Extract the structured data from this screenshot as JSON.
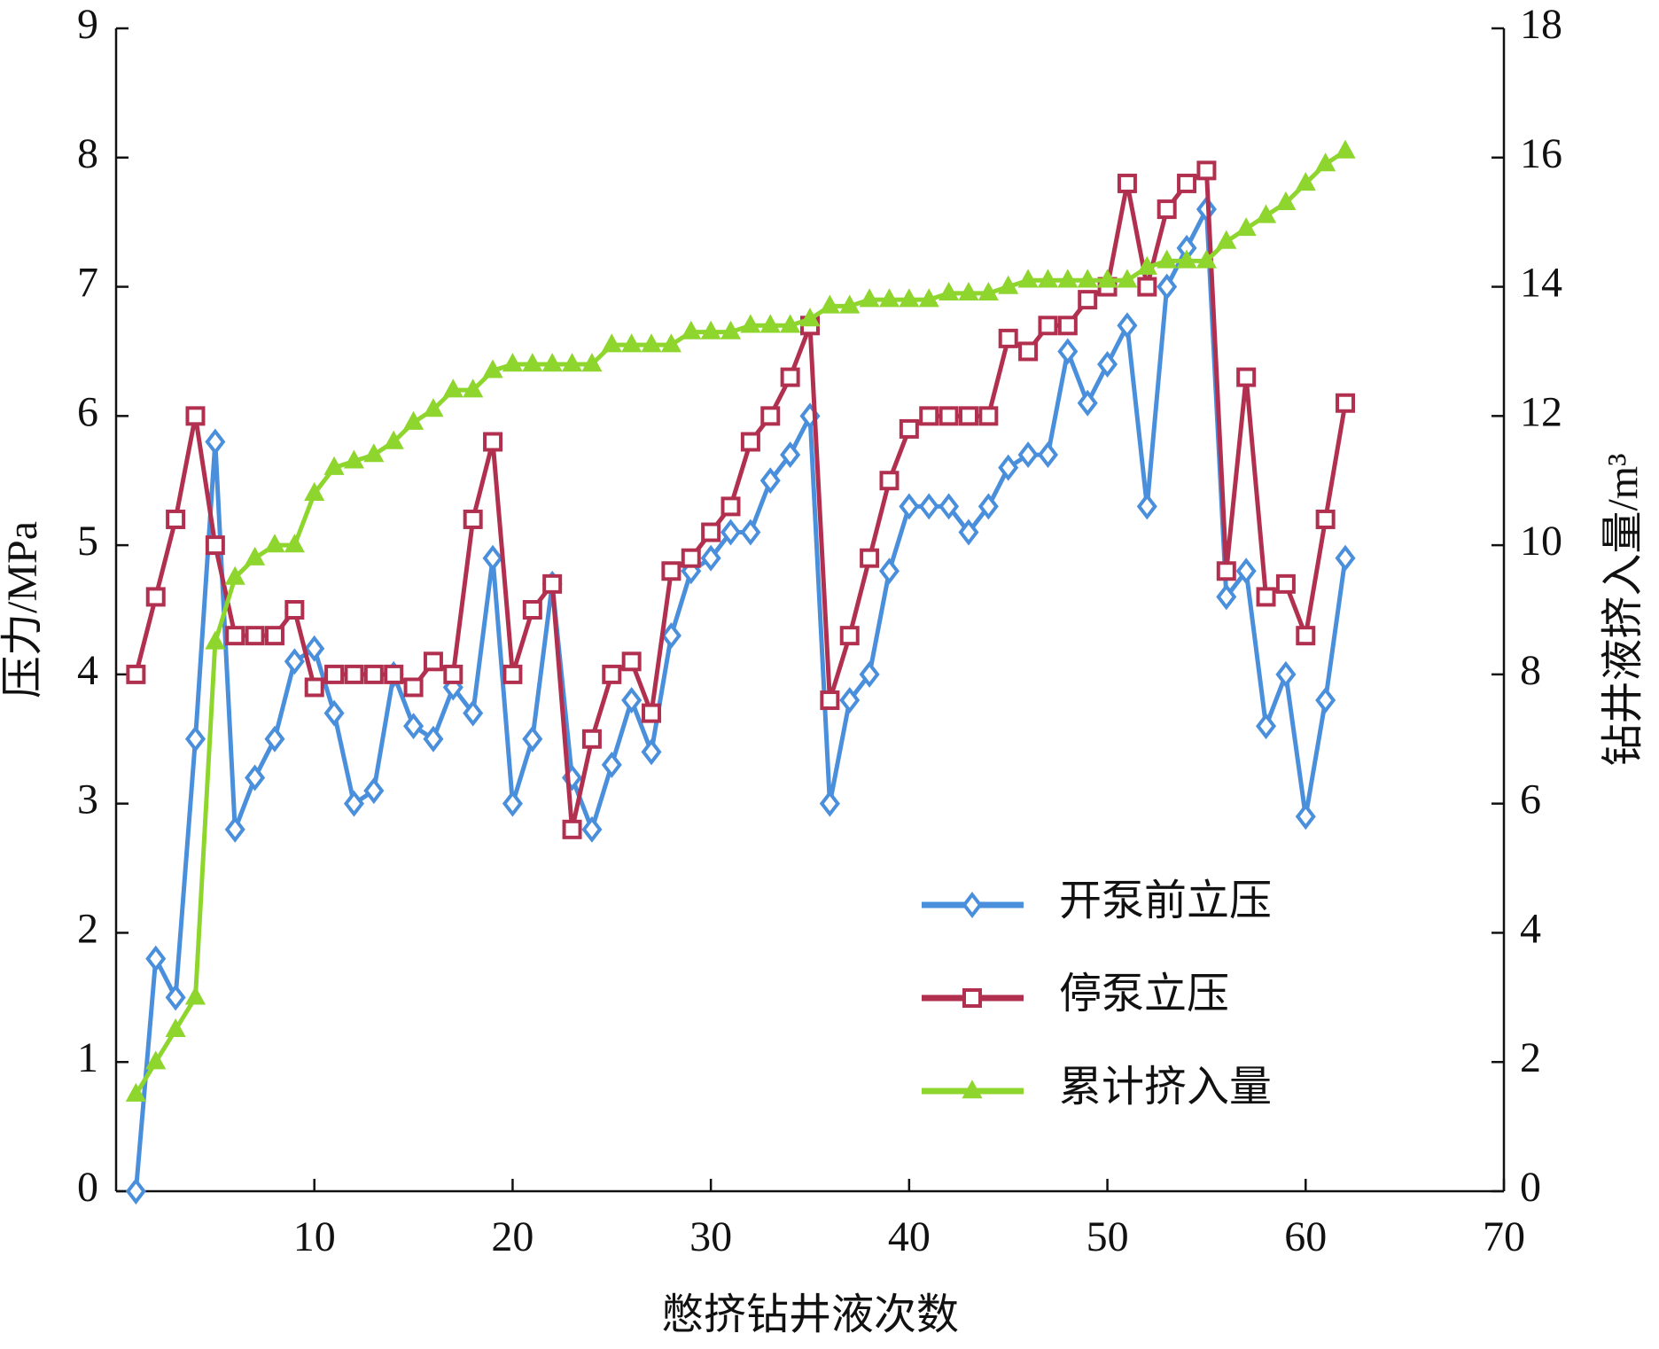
{
  "chart_data": {
    "type": "line",
    "x_label": "憋挤钻井液次数",
    "y_label": "压力/MPa",
    "y2_label": "钻井液挤入量/m³",
    "x": [
      1,
      2,
      3,
      4,
      5,
      6,
      7,
      8,
      9,
      10,
      11,
      12,
      13,
      14,
      15,
      16,
      17,
      18,
      19,
      20,
      21,
      22,
      23,
      24,
      25,
      26,
      27,
      28,
      29,
      30,
      31,
      32,
      33,
      34,
      35,
      36,
      37,
      38,
      39,
      40,
      41,
      42,
      43,
      44,
      45,
      46,
      47,
      48,
      49,
      50,
      51,
      52,
      53,
      54,
      55,
      56,
      57,
      58,
      59,
      60,
      61,
      62
    ],
    "series": [
      {
        "name": "开泵前立压",
        "color": "#4a8fdc",
        "marker": "diamond",
        "values": [
          0,
          1.8,
          1.5,
          3.5,
          5.8,
          2.8,
          3.2,
          3.5,
          4.1,
          4.2,
          3.7,
          3.0,
          3.1,
          4.0,
          3.6,
          3.5,
          3.9,
          3.7,
          4.9,
          3.0,
          3.5,
          4.7,
          3.2,
          2.8,
          3.3,
          3.8,
          3.4,
          4.3,
          4.8,
          4.9,
          5.1,
          5.1,
          5.5,
          5.7,
          6.0,
          3.0,
          3.8,
          4.0,
          4.8,
          5.3,
          5.3,
          5.3,
          5.1,
          5.3,
          5.6,
          5.7,
          5.7,
          6.5,
          6.1,
          6.4,
          6.7,
          5.3,
          7.0,
          7.3,
          7.6,
          4.6,
          4.8,
          3.6,
          4.0,
          2.9,
          3.8,
          4.9
        ]
      },
      {
        "name": "停泵立压",
        "color": "#b2304f",
        "marker": "square",
        "values": [
          4.0,
          4.6,
          5.2,
          6.0,
          5.0,
          4.3,
          4.3,
          4.3,
          4.5,
          3.9,
          4.0,
          4.0,
          4.0,
          4.0,
          3.9,
          4.1,
          4.0,
          5.2,
          5.8,
          4.0,
          4.5,
          4.7,
          2.8,
          3.5,
          4.0,
          4.1,
          3.7,
          4.8,
          4.9,
          5.1,
          5.3,
          5.8,
          6.0,
          6.3,
          6.7,
          3.8,
          4.3,
          4.9,
          5.5,
          5.9,
          6.0,
          6.0,
          6.0,
          6.0,
          6.6,
          6.5,
          6.7,
          6.7,
          6.9,
          7.0,
          7.8,
          7.0,
          7.6,
          7.8,
          7.9,
          4.8,
          6.3,
          4.6,
          4.7,
          4.3,
          5.2,
          6.1
        ]
      },
      {
        "name": "累计挤入量",
        "color": "#8ed62e",
        "marker": "triangle",
        "axis": "y2",
        "values": [
          1.5,
          2.0,
          2.5,
          3.0,
          8.5,
          9.5,
          9.8,
          10.0,
          10.0,
          10.8,
          11.2,
          11.3,
          11.4,
          11.6,
          11.9,
          12.1,
          12.4,
          12.4,
          12.7,
          12.8,
          12.8,
          12.8,
          12.8,
          12.8,
          13.1,
          13.1,
          13.1,
          13.1,
          13.3,
          13.3,
          13.3,
          13.4,
          13.4,
          13.4,
          13.5,
          13.7,
          13.7,
          13.8,
          13.8,
          13.8,
          13.8,
          13.9,
          13.9,
          13.9,
          14.0,
          14.1,
          14.1,
          14.1,
          14.1,
          14.1,
          14.1,
          14.3,
          14.4,
          14.4,
          14.4,
          14.7,
          14.9,
          15.1,
          15.3,
          15.6,
          15.9,
          16.1
        ]
      }
    ],
    "xlim": [
      0,
      70
    ],
    "xticks": [
      10,
      20,
      30,
      40,
      50,
      60,
      70
    ],
    "ylim": [
      0,
      9
    ],
    "yticks": [
      0,
      1,
      2,
      3,
      4,
      5,
      6,
      7,
      8,
      9
    ],
    "y2lim": [
      0,
      18
    ],
    "y2ticks": [
      0,
      2,
      4,
      6,
      8,
      10,
      12,
      14,
      16,
      18
    ],
    "legend": "lower right"
  }
}
